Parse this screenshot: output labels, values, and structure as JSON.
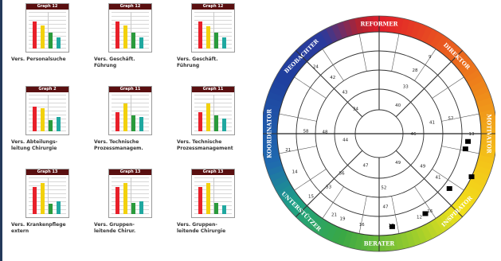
{
  "colors": {
    "red": "#e8202a",
    "yellow": "#f2d10d",
    "green": "#2a9b3c",
    "teal": "#20a8a0",
    "header": "#5a0f10",
    "wheel_gradient": [
      "#e11d2a",
      "#ef6f1e",
      "#f4d21b",
      "#b8d52a",
      "#39a845",
      "#1f9c9a",
      "#1f56a8",
      "#1b2f8c",
      "#2a3c9c",
      "#7a2a8f",
      "#c2212e"
    ]
  },
  "cards": [
    {
      "header": "Graph 12",
      "caption": [
        "Vers. Personalsuche",
        ""
      ],
      "bars": [
        0.72,
        0.62,
        0.43,
        0.3
      ]
    },
    {
      "header": "Graph 12",
      "caption": [
        "Vers. Geschäft.",
        "Führung"
      ],
      "bars": [
        0.72,
        0.62,
        0.43,
        0.3
      ]
    },
    {
      "header": "Graph 12",
      "caption": [
        "Vers. Geschäft.",
        "Führung"
      ],
      "bars": [
        0.72,
        0.6,
        0.43,
        0.3
      ]
    },
    {
      "header": "Graph 2",
      "caption": [
        "Vers. Abteilungs-",
        "leitung Chirurgie"
      ],
      "bars": [
        0.65,
        0.62,
        0.3,
        0.38
      ]
    },
    {
      "header": "Graph 11",
      "caption": [
        "Vers. Technische",
        "Prozessmanagem."
      ],
      "bars": [
        0.5,
        0.75,
        0.42,
        0.38
      ]
    },
    {
      "header": "Graph 11",
      "caption": [
        "Vers. Technische",
        "Prozessmanagement"
      ],
      "bars": [
        0.5,
        0.75,
        0.42,
        0.34
      ]
    },
    {
      "header": "Graph 13",
      "caption": [
        "Vers. Krankenpflege",
        "extern"
      ],
      "bars": [
        0.72,
        0.82,
        0.28,
        0.34
      ]
    },
    {
      "header": "Graph 13",
      "caption": [
        "Vers. Gruppen-",
        "leitende Chirur."
      ],
      "bars": [
        0.72,
        0.82,
        0.3,
        0.34
      ]
    },
    {
      "header": "Graph 13",
      "caption": [
        "Vers. Gruppen-",
        "leitende Chirurgie"
      ],
      "bars": [
        0.72,
        0.82,
        0.3,
        0.24
      ]
    }
  ],
  "wheel": {
    "labels": [
      "REFORMER",
      "DIREKTOR",
      "MOTIVATOR",
      "INSPIRATOR",
      "BERATER",
      "UNTERSTÜTZER",
      "KOORDINATOR",
      "BEOBACHTER"
    ],
    "numbers": [
      [
        "9",
        "13",
        "16",
        "19",
        "21",
        "24"
      ],
      [
        "28",
        "57",
        "41",
        "47",
        "53",
        "58",
        "42"
      ],
      [
        "33",
        "41",
        "49",
        "52",
        "56",
        "48",
        "43"
      ],
      [
        "40",
        "46",
        "49",
        "47",
        "44",
        "34"
      ],
      [
        "12",
        "17",
        "16",
        "21",
        "15",
        "14"
      ]
    ]
  }
}
